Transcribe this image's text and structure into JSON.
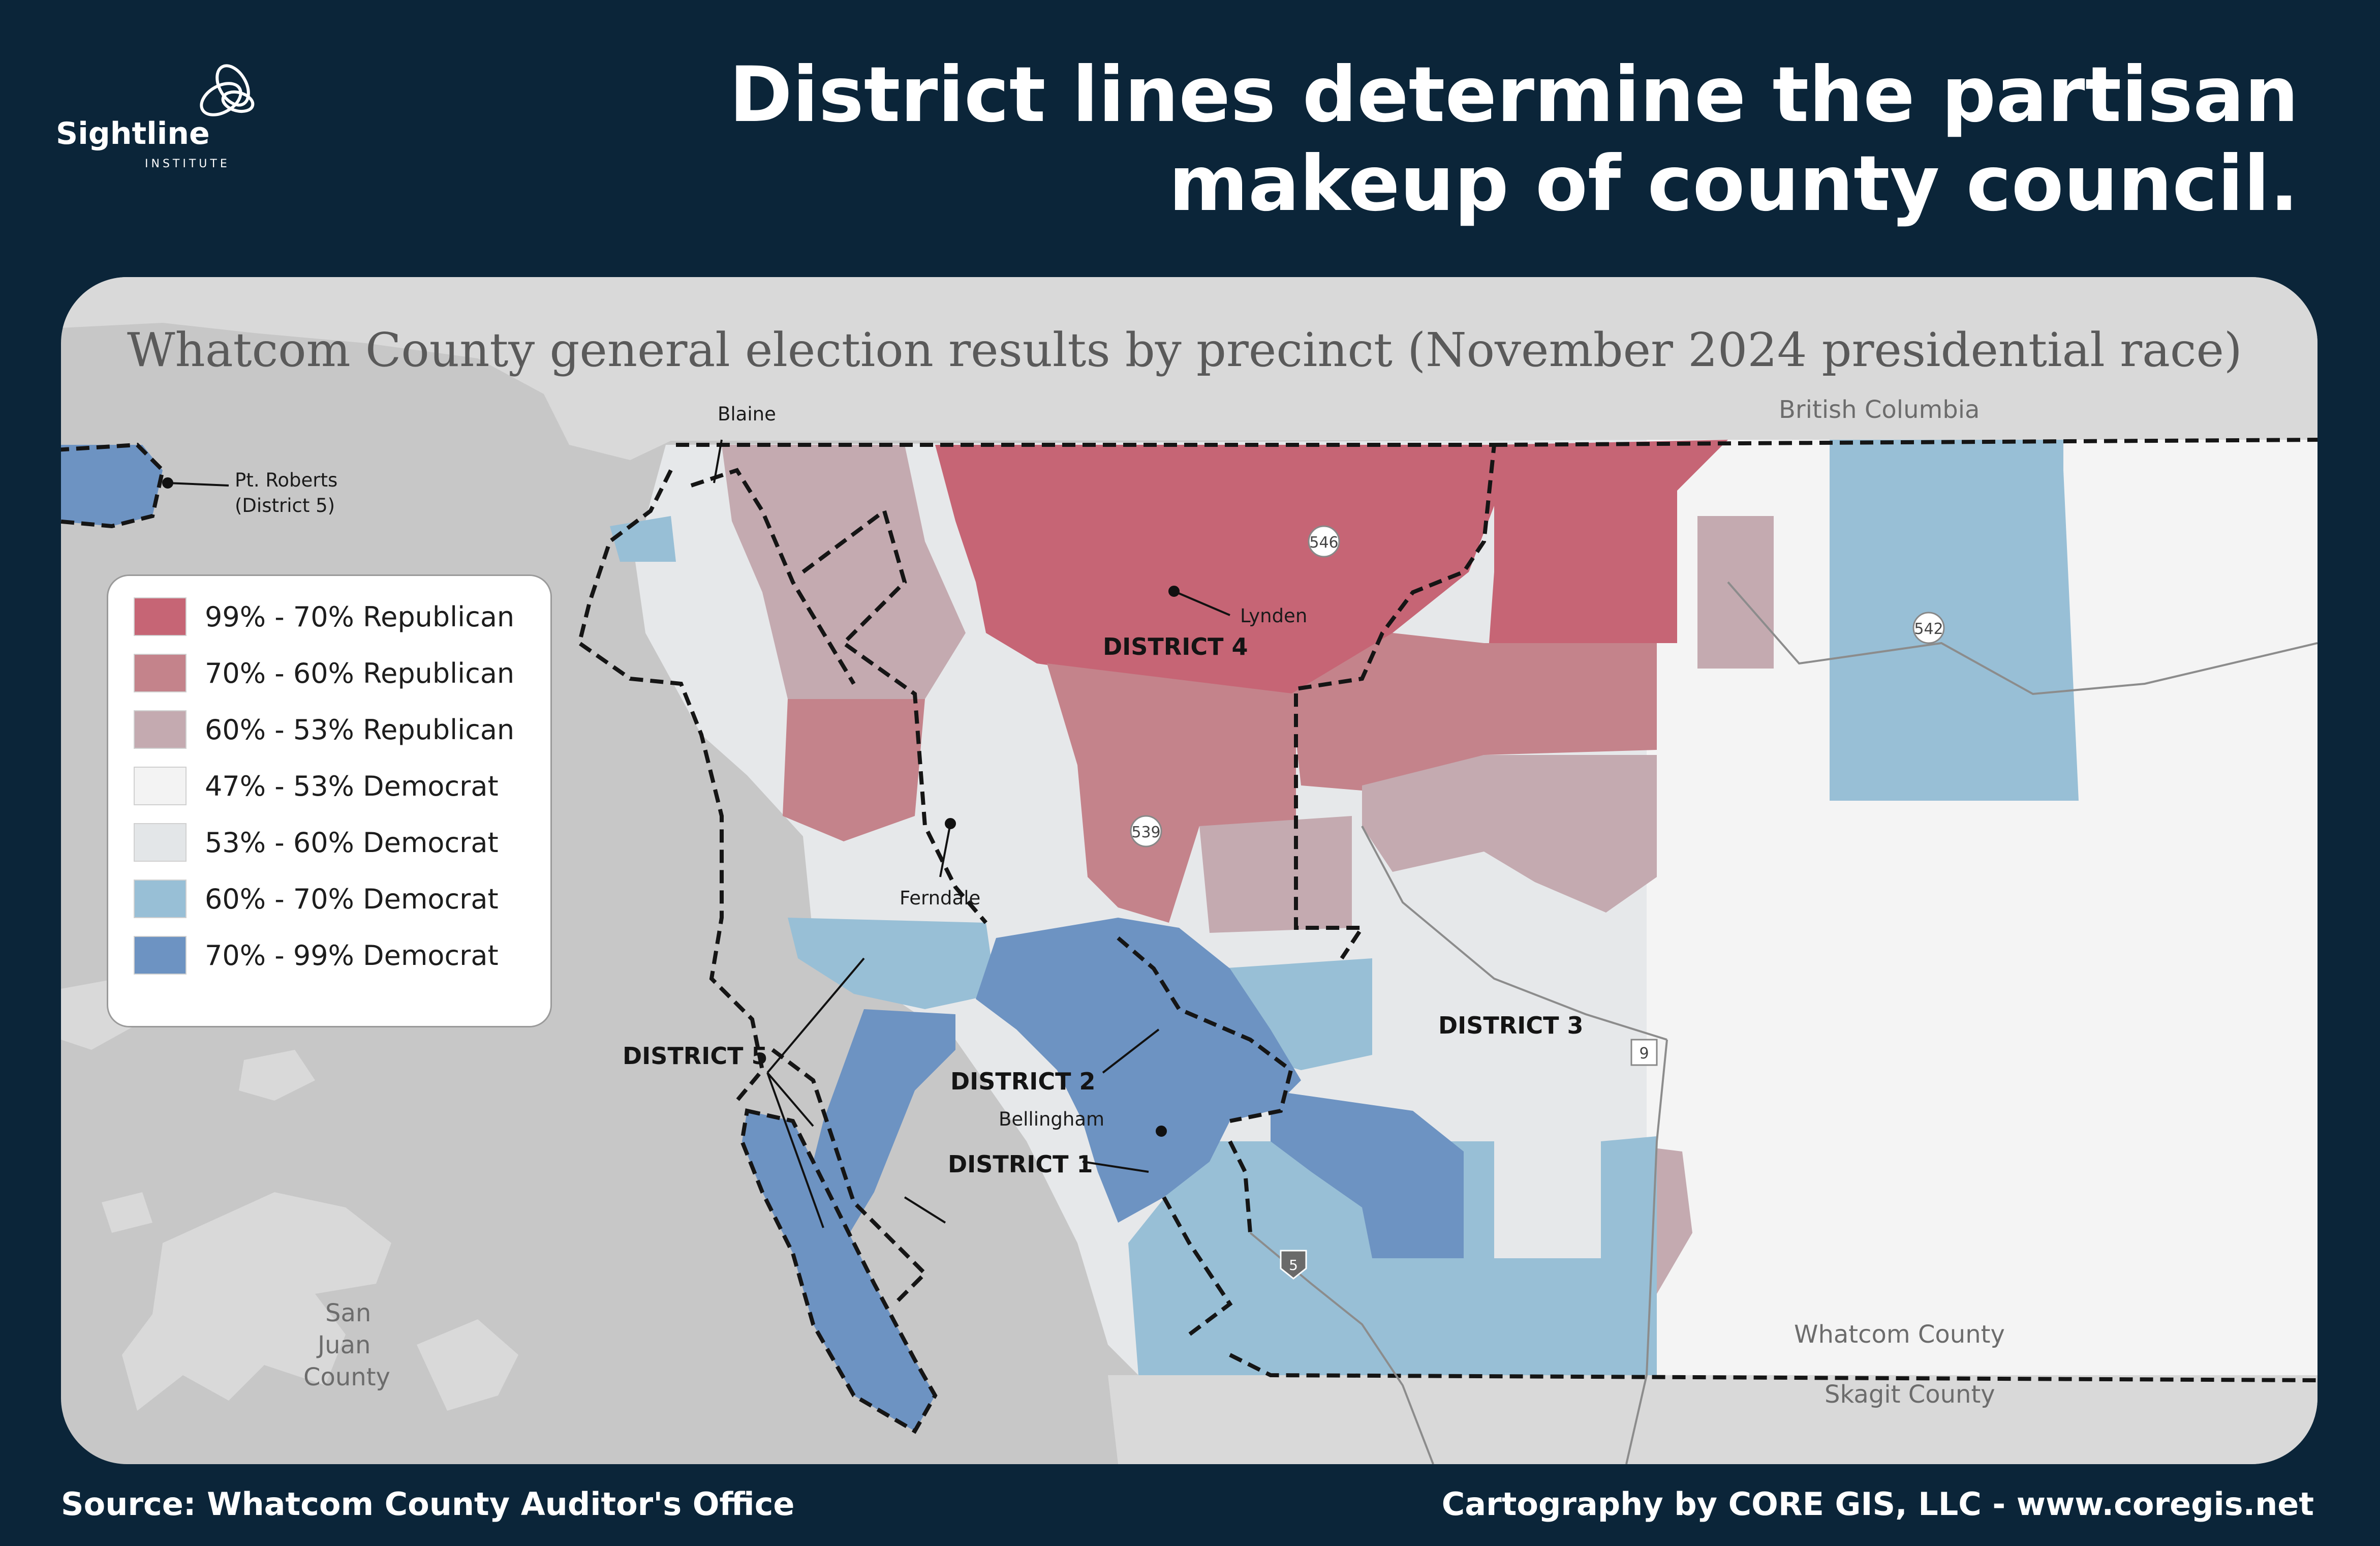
{
  "logo": {
    "name": "Sightline",
    "sub": "INSTITUTE"
  },
  "headline": {
    "line1": "District lines determine the partisan",
    "line2": "makeup of county council."
  },
  "map": {
    "title": "Whatcom County general election results by precinct  (November 2024 presidential race)",
    "legend": [
      {
        "label": "99% - 70% Republican",
        "color": "#c66575"
      },
      {
        "label": "70% - 60% Republican",
        "color": "#c4838b"
      },
      {
        "label": "60% - 53% Republican",
        "color": "#c4aab0"
      },
      {
        "label": "47% - 53% Democrat",
        "color": "#f3f3f3"
      },
      {
        "label": "53% - 60% Democrat",
        "color": "#e3e6e8"
      },
      {
        "label": "60% - 70% Democrat",
        "color": "#98bfd6"
      },
      {
        "label": "70% - 99% Democrat",
        "color": "#6d93c2"
      }
    ],
    "districts": {
      "d1": "DISTRICT 1",
      "d2": "DISTRICT 2",
      "d3": "DISTRICT 3",
      "d4": "DISTRICT 4",
      "d5": "DISTRICT 5"
    },
    "places": {
      "blaine": "Blaine",
      "pt_roberts": "Pt. Roberts",
      "pt_roberts_note": "(District 5)",
      "lynden": "Lynden",
      "ferndale": "Ferndale",
      "bellingham": "Bellingham"
    },
    "regions": {
      "british_columbia": "British Columbia",
      "whatcom_county": "Whatcom County",
      "skagit_county": "Skagit County",
      "san_juan_1": "San",
      "san_juan_2": "Juan",
      "san_juan_3": "County"
    },
    "highways": {
      "h546": "546",
      "h542": "542",
      "h539": "539",
      "h9": "9",
      "h5": "5"
    }
  },
  "footer": {
    "source": "Source: Whatcom County Auditor's Office",
    "credit": "Cartography by CORE GIS, LLC - www.coregis.net"
  }
}
